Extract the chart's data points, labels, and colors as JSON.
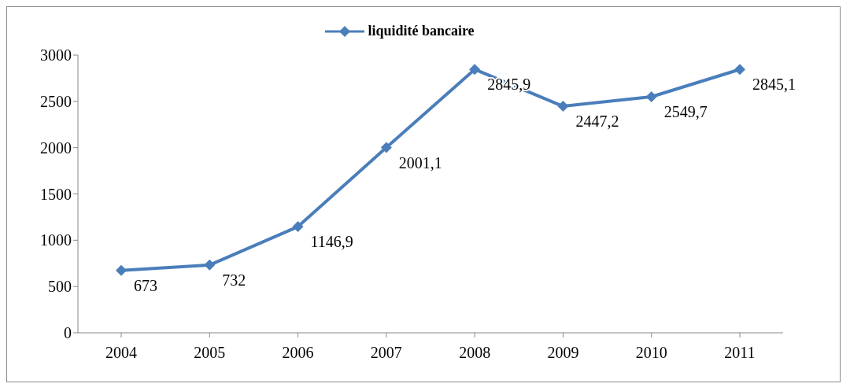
{
  "chart_data": {
    "type": "line",
    "categories": [
      "2004",
      "2005",
      "2006",
      "2007",
      "2008",
      "2009",
      "2010",
      "2011"
    ],
    "series": [
      {
        "name": "liquidité bancaire",
        "color": "#4a7ebb",
        "values": [
          673,
          732,
          1146.9,
          2001.1,
          2845.9,
          2447.2,
          2549.7,
          2845.1
        ],
        "value_labels": [
          "673",
          "732",
          "1146,9",
          "2001,1",
          "2845,9",
          "2447,2",
          "2549,7",
          "2845,1"
        ]
      }
    ],
    "ylim": [
      0,
      3000
    ],
    "yticks": [
      0,
      500,
      1000,
      1500,
      2000,
      2500,
      3000
    ],
    "grid": false,
    "legend": "top",
    "marker": "diamond",
    "line_style": "solid"
  }
}
